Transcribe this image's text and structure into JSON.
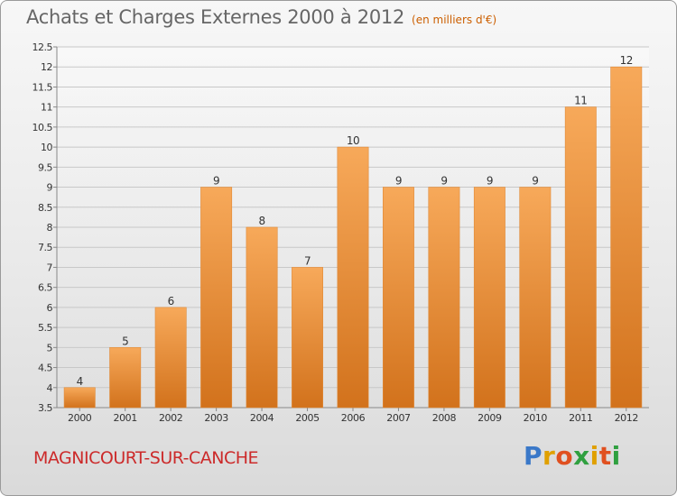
{
  "header": {
    "title": "Achats et Charges Externes 2000 à 2012",
    "unit": "(en milliers d'€)"
  },
  "footer": {
    "commune": "MAGNICOURT-SUR-CANCHE",
    "logo": {
      "letters": [
        "P",
        "r",
        "o",
        "x",
        "i",
        "t",
        "i"
      ],
      "colors": [
        "#3a78c8",
        "#e0a000",
        "#e05020",
        "#30a040",
        "#e0a000",
        "#e05020",
        "#30a040"
      ]
    }
  },
  "chart_data": {
    "type": "bar",
    "categories": [
      "2000",
      "2001",
      "2002",
      "2003",
      "2004",
      "2005",
      "2006",
      "2007",
      "2008",
      "2009",
      "2010",
      "2011",
      "2012"
    ],
    "values": [
      4,
      5,
      6,
      9,
      8,
      7,
      10,
      9,
      9,
      9,
      9,
      11,
      12
    ],
    "data_labels": [
      "4",
      "5",
      "6",
      "9",
      "8",
      "7",
      "10",
      "9",
      "9",
      "9",
      "9",
      "11",
      "12"
    ],
    "ylim": [
      3.5,
      12.5
    ],
    "yticks": [
      "3.5",
      "4",
      "4.5",
      "5",
      "5.5",
      "6",
      "6.5",
      "7",
      "7.5",
      "8",
      "8.5",
      "9",
      "9.5",
      "10",
      "10.5",
      "11",
      "11.5",
      "12",
      "12.5"
    ],
    "bar_color_light": "#f7a95a",
    "bar_color_dark": "#d2721c",
    "grid": true
  }
}
